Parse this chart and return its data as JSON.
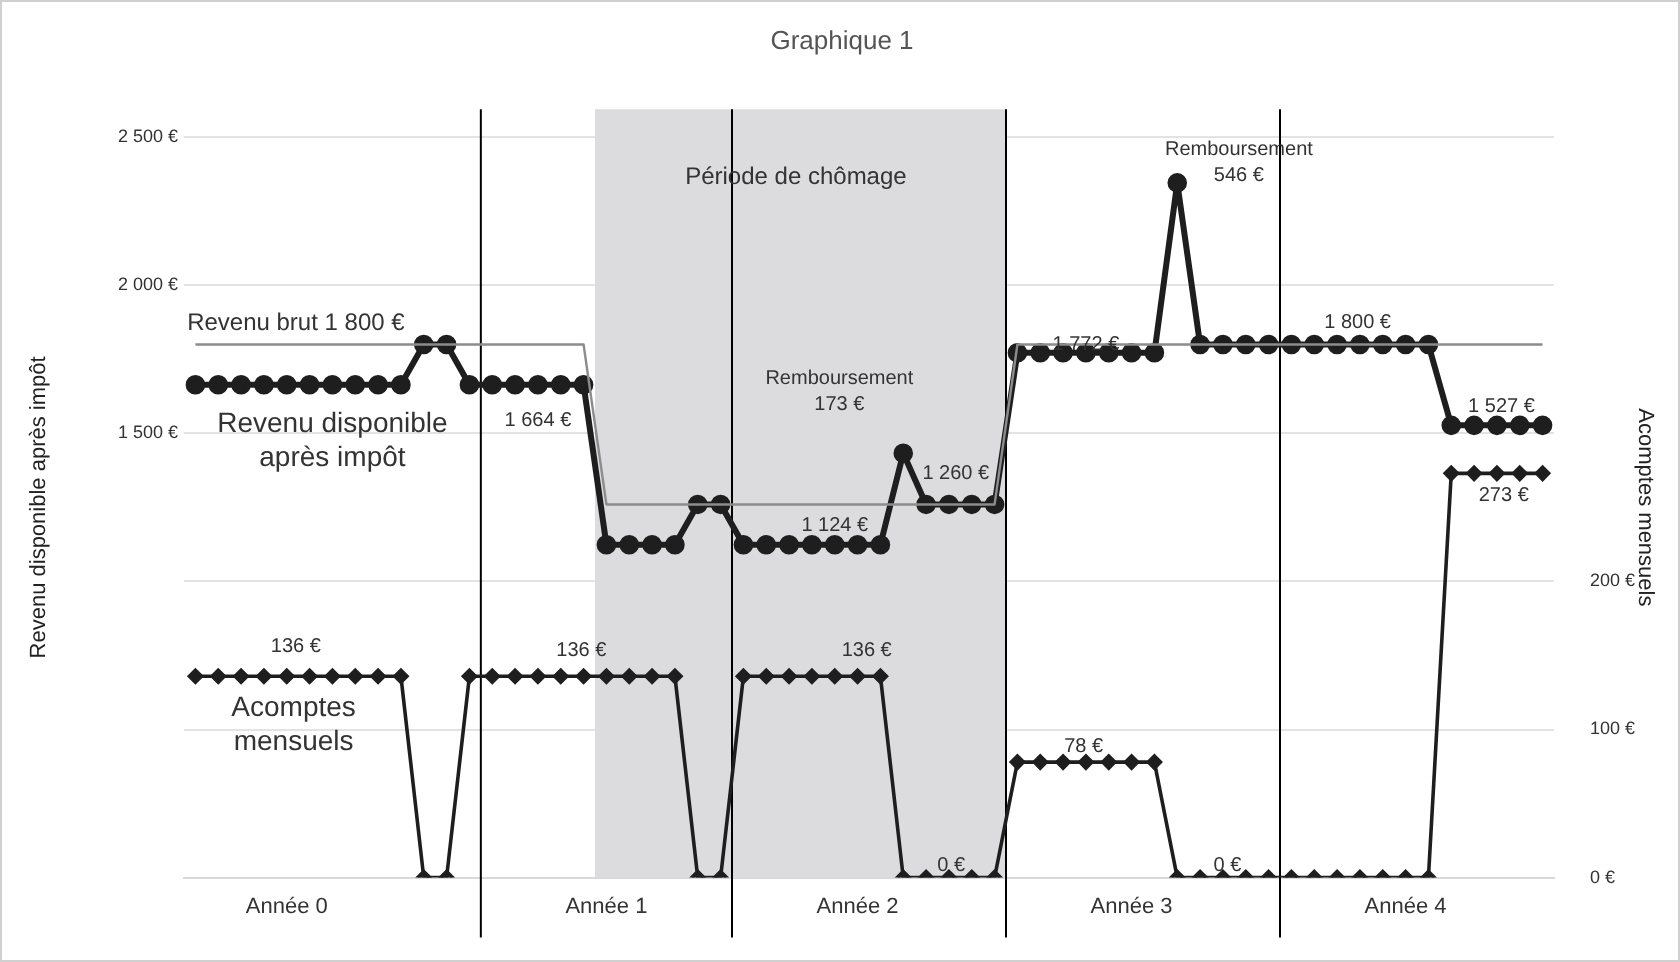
{
  "chart_data": {
    "type": "line",
    "title": "Graphique 1",
    "ylabel": "Revenu disponible après impôt",
    "y2label": "Acomptes mensuels",
    "categories": [
      null,
      null,
      null,
      null,
      "Année 0",
      null,
      null,
      null,
      null,
      null,
      null,
      null,
      null,
      null,
      null,
      null,
      null,
      null,
      "Année 1",
      null,
      null,
      null,
      null,
      null,
      null,
      null,
      null,
      null,
      null,
      "Année 2",
      null,
      null,
      null,
      null,
      null,
      null,
      null,
      null,
      null,
      null,
      null,
      "Année 3",
      null,
      null,
      null,
      null,
      null,
      null,
      null,
      null,
      null,
      null,
      null,
      "Année 4",
      null,
      null,
      null,
      null,
      null,
      null
    ],
    "ylim": [
      0,
      2500
    ],
    "yticks": [
      {
        "value": 0,
        "label": null
      },
      {
        "value": 500,
        "label": null
      },
      {
        "value": 1000,
        "label": null
      },
      {
        "value": 1500,
        "label": "1 500 €"
      },
      {
        "value": 2000,
        "label": "2 000 €"
      },
      {
        "value": 2500,
        "label": "2 500 €"
      }
    ],
    "y2lim": [
      0,
      500
    ],
    "y2ticks": [
      {
        "value": 0,
        "label": "0 €"
      },
      {
        "value": 100,
        "label": "100 €"
      },
      {
        "value": 200,
        "label": "200 €"
      }
    ],
    "series": [
      {
        "color": "#8c8c8c",
        "marker": "none",
        "values": [
          1800,
          1800,
          1800,
          1800,
          1800,
          1800,
          1800,
          1800,
          1800,
          1800,
          1800,
          1800,
          1800,
          1800,
          1800,
          1800,
          1800,
          1800,
          1260,
          1260,
          1260,
          1260,
          1260,
          1260,
          1260,
          1260,
          1260,
          1260,
          1260,
          1260,
          1260,
          1260,
          1260,
          1260,
          1260,
          1260,
          1800,
          1800,
          1800,
          1800,
          1800,
          1800,
          1800,
          1800,
          1800,
          1800,
          1800,
          1800,
          1800,
          1800,
          1800,
          1800,
          1800,
          1800,
          1800,
          1800,
          1800,
          1800,
          1800,
          1800
        ]
      },
      {
        "color": "#1e1e1e",
        "marker": "circle",
        "values": [
          1664,
          1664,
          1664,
          1664,
          1664,
          1664,
          1664,
          1664,
          1664,
          1664,
          1800,
          1800,
          1664,
          1664,
          1664,
          1664,
          1664,
          1664,
          1124,
          1124,
          1124,
          1124,
          1260,
          1260,
          1124,
          1124,
          1124,
          1124,
          1124,
          1124,
          1124,
          1433,
          1260,
          1260,
          1260,
          1260,
          1772,
          1772,
          1772,
          1772,
          1772,
          1772,
          1772,
          2346,
          1800,
          1800,
          1800,
          1800,
          1800,
          1800,
          1800,
          1800,
          1800,
          1800,
          1800,
          1527,
          1527,
          1527,
          1527,
          1527
        ]
      },
      {
        "color": "#1e1e1e",
        "marker": "diamond",
        "axis": "y2",
        "values": [
          136,
          136,
          136,
          136,
          136,
          136,
          136,
          136,
          136,
          136,
          0,
          0,
          136,
          136,
          136,
          136,
          136,
          136,
          136,
          136,
          136,
          136,
          0,
          0,
          136,
          136,
          136,
          136,
          136,
          136,
          136,
          0,
          0,
          0,
          0,
          0,
          78,
          78,
          78,
          78,
          78,
          78,
          78,
          0,
          0,
          0,
          0,
          0,
          0,
          0,
          0,
          0,
          0,
          0,
          0,
          273,
          273,
          273,
          273,
          273
        ]
      }
    ],
    "annotations": [
      "Revenu brut 1 800 €",
      "Revenu disponible\naprès impôt",
      "1 664 €",
      "1 124 €",
      "Remboursement\n173 €",
      "1 260 €",
      "1 772 €",
      "Remboursement\n546 €",
      "1 800 €",
      "1 527 €",
      "273 €",
      "136 €",
      "136 €",
      "136 €",
      "Acomptes\nmensuels",
      "0 €",
      "78 €",
      "0 €",
      "Période de chômage"
    ],
    "grid": "y",
    "legend": false
  }
}
